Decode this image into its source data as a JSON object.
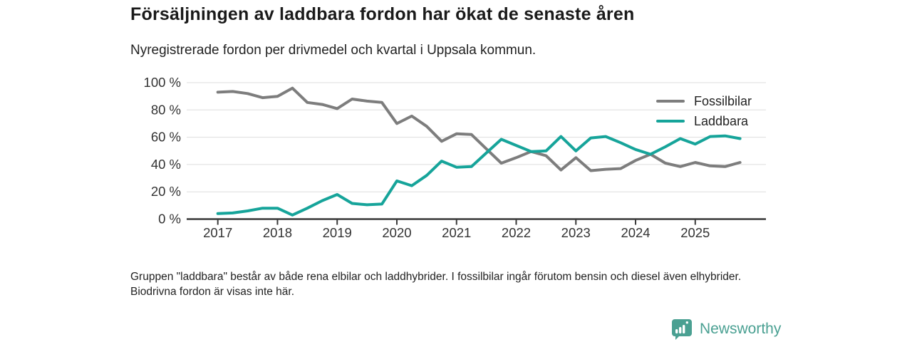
{
  "title": "Försäljningen av laddbara fordon har ökat de senaste åren",
  "subtitle": "Nyregistrerade fordon per drivmedel och kvartal i Uppsala kommun.",
  "footnote": "Gruppen \"laddbara\" består av både rena elbilar och laddhybrider. I fossilbilar ingår förutom bensin och diesel även elhybrider. Biodrivna fordon är visas inte här.",
  "brand": {
    "name": "Newsworthy",
    "color": "#4aa092",
    "icon": "bar-chart-speech-bubble"
  },
  "chart_data": {
    "type": "line",
    "title": "Försäljningen av laddbara fordon har ökat de senaste åren",
    "subtitle": "Nyregistrerade fordon per drivmedel och kvartal i Uppsala kommun.",
    "x_unit": "quarter",
    "grid": "horizontal",
    "legend_position": "top-right",
    "ylim": [
      0,
      100
    ],
    "y_ticks": [
      0,
      20,
      40,
      60,
      80,
      100
    ],
    "y_tick_labels": [
      "0 %",
      "20 %",
      "40 %",
      "60 %",
      "80 %",
      "100 %"
    ],
    "x_tick_labels": [
      "2017",
      "2018",
      "2019",
      "2020",
      "2021",
      "2022",
      "2023",
      "2024",
      "2025"
    ],
    "categories": [
      "2017 Q1",
      "2017 Q2",
      "2017 Q3",
      "2017 Q4",
      "2018 Q1",
      "2018 Q2",
      "2018 Q3",
      "2018 Q4",
      "2019 Q1",
      "2019 Q2",
      "2019 Q3",
      "2019 Q4",
      "2020 Q1",
      "2020 Q2",
      "2020 Q3",
      "2020 Q4",
      "2021 Q1",
      "2021 Q2",
      "2021 Q3",
      "2021 Q4",
      "2022 Q1",
      "2022 Q2",
      "2022 Q3",
      "2022 Q4",
      "2023 Q1",
      "2023 Q2",
      "2023 Q3",
      "2023 Q4",
      "2024 Q1",
      "2024 Q2",
      "2024 Q3",
      "2024 Q4",
      "2025 Q1",
      "2025 Q2",
      "2025 Q3",
      "2025 Q4"
    ],
    "series": [
      {
        "name": "Fossilbilar",
        "color": "#7d7d7d",
        "values": [
          93,
          93.5,
          92,
          89,
          90,
          96,
          85.5,
          84,
          81,
          88,
          86.5,
          85.5,
          70,
          75.5,
          68,
          57,
          62.5,
          62,
          51.5,
          41,
          45,
          49.5,
          46.5,
          36,
          45,
          35.5,
          36.5,
          37,
          43,
          47.5,
          41,
          38.5,
          41.5,
          39,
          38.5,
          41.5
        ]
      },
      {
        "name": "Laddbara",
        "color": "#16a49a",
        "values": [
          4,
          4.5,
          6,
          8,
          8,
          3,
          8,
          13.5,
          18,
          11.5,
          10.5,
          11,
          28,
          24.5,
          32,
          42.5,
          38,
          38.5,
          48.5,
          58.5,
          54,
          49.5,
          50,
          60.5,
          50,
          59.5,
          60.5,
          56,
          51,
          47.5,
          53,
          59,
          55,
          60.5,
          61,
          59
        ]
      }
    ]
  }
}
